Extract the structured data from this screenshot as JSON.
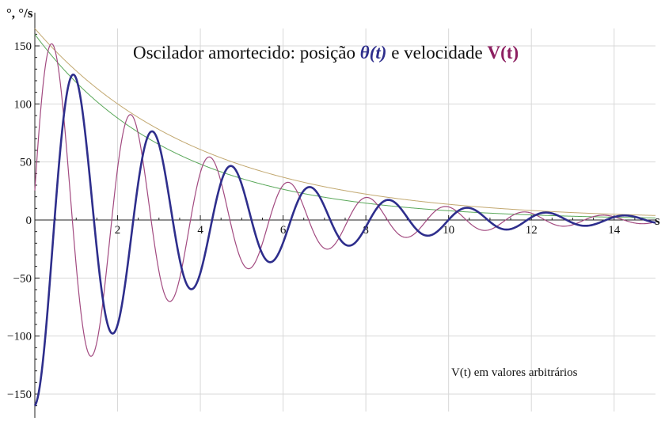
{
  "chart_data": {
    "type": "line",
    "title": {
      "prefix": "Oscilador amortecido: posição ",
      "theta_label": "θ(t)",
      "middle": " e velocidade ",
      "v_label": "V(t)"
    },
    "ylabel": "°, °/s",
    "xlabel": "s",
    "annotation": "V(t) em valores arbitrários",
    "xlim": [
      0,
      15
    ],
    "ylim": [
      -165,
      165
    ],
    "xticks": [
      2,
      4,
      6,
      8,
      10,
      12,
      14
    ],
    "yticks": [
      -150,
      -100,
      -50,
      0,
      50,
      100,
      150
    ],
    "xtick_labels": [
      "2",
      "4",
      "6",
      "8",
      "10",
      "12",
      "14"
    ],
    "ytick_labels": [
      "−150",
      "−100",
      "−50",
      "0",
      "50",
      "100",
      "150"
    ],
    "grid": true,
    "series": [
      {
        "id": "theta",
        "color": "#2e2e8c",
        "stroke": "thick",
        "model": "-160 * exp(-0.26*t) * cos(3.3*t)",
        "peaks": [
          {
            "t": 0.0,
            "v": -160
          },
          {
            "t": 0.9,
            "v": 132
          },
          {
            "t": 1.9,
            "v": -108
          },
          {
            "t": 2.8,
            "v": 88
          },
          {
            "t": 3.7,
            "v": -72
          },
          {
            "t": 4.6,
            "v": 58
          },
          {
            "t": 5.5,
            "v": -47
          },
          {
            "t": 6.4,
            "v": 37
          },
          {
            "t": 7.3,
            "v": -30
          },
          {
            "t": 8.3,
            "v": 23
          },
          {
            "t": 9.2,
            "v": -19
          },
          {
            "t": 10.1,
            "v": 13
          },
          {
            "t": 11.0,
            "v": -10
          },
          {
            "t": 11.9,
            "v": 7
          },
          {
            "t": 12.8,
            "v": -5
          },
          {
            "t": 13.8,
            "v": 2
          },
          {
            "t": 15.0,
            "v": 0
          }
        ]
      },
      {
        "id": "velocity",
        "color": "#a24a80",
        "stroke": "thin",
        "model": "170 * exp(-0.27*t) * sin(3.3*t + 0.15)",
        "peaks": [
          {
            "t": 0.0,
            "v": 25
          },
          {
            "t": 0.45,
            "v": 162
          },
          {
            "t": 1.3,
            "v": -132
          },
          {
            "t": 2.3,
            "v": 108
          },
          {
            "t": 3.2,
            "v": -88
          },
          {
            "t": 4.1,
            "v": 72
          },
          {
            "t": 5.0,
            "v": -58
          },
          {
            "t": 5.9,
            "v": 47
          },
          {
            "t": 6.8,
            "v": -38
          },
          {
            "t": 7.8,
            "v": 29
          },
          {
            "t": 8.7,
            "v": -24
          },
          {
            "t": 9.6,
            "v": 17
          },
          {
            "t": 10.5,
            "v": -13
          },
          {
            "t": 11.5,
            "v": 9
          },
          {
            "t": 12.4,
            "v": -7
          },
          {
            "t": 13.3,
            "v": 3
          },
          {
            "t": 15.0,
            "v": 0
          }
        ]
      },
      {
        "id": "envelope-theta",
        "color": "#5aa85a",
        "stroke": "hair",
        "model": "160 * exp(-0.3*t)",
        "points": [
          {
            "t": 0,
            "v": 160
          },
          {
            "t": 2,
            "v": 88
          },
          {
            "t": 4,
            "v": 55
          },
          {
            "t": 6,
            "v": 33
          },
          {
            "t": 8,
            "v": 19
          },
          {
            "t": 10,
            "v": 11
          },
          {
            "t": 12,
            "v": 6
          },
          {
            "t": 14,
            "v": 2
          },
          {
            "t": 15,
            "v": 0
          }
        ]
      },
      {
        "id": "envelope-velocity",
        "color": "#c2a870",
        "stroke": "hair",
        "model": "165 * exp(-0.25*t)",
        "points": [
          {
            "t": 0,
            "v": 168
          },
          {
            "t": 2,
            "v": 118
          },
          {
            "t": 4,
            "v": 74
          },
          {
            "t": 6,
            "v": 45
          },
          {
            "t": 8,
            "v": 27
          },
          {
            "t": 10,
            "v": 15
          },
          {
            "t": 12,
            "v": 8
          },
          {
            "t": 14,
            "v": 3
          },
          {
            "t": 15,
            "v": 0
          }
        ]
      }
    ]
  }
}
